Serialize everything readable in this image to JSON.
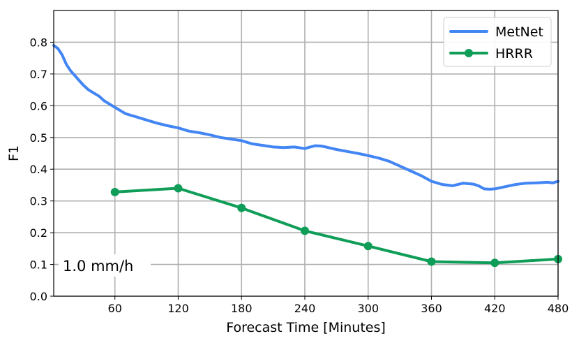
{
  "chart_data": {
    "type": "line",
    "title": "",
    "xlabel": "Forecast Time [Minutes]",
    "ylabel": "F1",
    "xlim": [
      2,
      480
    ],
    "ylim": [
      0.0,
      0.9
    ],
    "xticks": [
      60,
      120,
      180,
      240,
      300,
      360,
      420,
      480
    ],
    "yticks": [
      0.0,
      0.1,
      0.2,
      0.3,
      0.4,
      0.5,
      0.6,
      0.7,
      0.8
    ],
    "grid": true,
    "legend_position": "top-right",
    "annotation": "1.0 mm/h",
    "series": [
      {
        "name": "MetNet",
        "color": "#4285f4",
        "marker": "none",
        "x": [
          2,
          6,
          10,
          14,
          18,
          22,
          26,
          30,
          35,
          40,
          45,
          50,
          55,
          60,
          65,
          70,
          75,
          80,
          90,
          100,
          110,
          120,
          130,
          140,
          150,
          160,
          170,
          180,
          190,
          200,
          210,
          220,
          230,
          240,
          245,
          250,
          255,
          260,
          270,
          280,
          290,
          300,
          310,
          320,
          330,
          340,
          350,
          360,
          370,
          380,
          390,
          400,
          405,
          410,
          415,
          420,
          430,
          440,
          450,
          460,
          470,
          475,
          480
        ],
        "y": [
          0.79,
          0.78,
          0.76,
          0.73,
          0.71,
          0.695,
          0.68,
          0.665,
          0.65,
          0.64,
          0.63,
          0.615,
          0.605,
          0.595,
          0.585,
          0.575,
          0.57,
          0.565,
          0.555,
          0.545,
          0.537,
          0.53,
          0.52,
          0.515,
          0.508,
          0.5,
          0.495,
          0.49,
          0.48,
          0.475,
          0.47,
          0.468,
          0.47,
          0.465,
          0.47,
          0.474,
          0.473,
          0.47,
          0.462,
          0.456,
          0.45,
          0.443,
          0.435,
          0.425,
          0.41,
          0.395,
          0.38,
          0.362,
          0.352,
          0.348,
          0.356,
          0.353,
          0.347,
          0.338,
          0.337,
          0.338,
          0.345,
          0.352,
          0.356,
          0.357,
          0.359,
          0.357,
          0.362
        ]
      },
      {
        "name": "HRRR",
        "color": "#0f9d58",
        "marker": "circle",
        "x": [
          60,
          120,
          180,
          240,
          300,
          360,
          420,
          480
        ],
        "y": [
          0.328,
          0.34,
          0.278,
          0.206,
          0.158,
          0.109,
          0.105,
          0.117
        ]
      }
    ]
  }
}
